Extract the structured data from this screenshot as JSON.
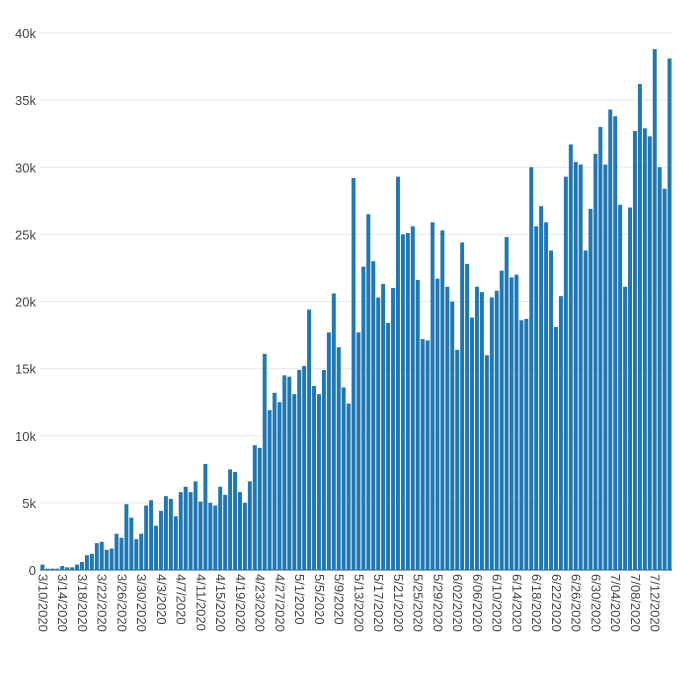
{
  "chart_data": {
    "type": "bar",
    "title": "",
    "xlabel": "",
    "ylabel": "",
    "ylim": [
      0,
      40000
    ],
    "grid": true,
    "bar_color": "#1f77b4",
    "y_ticks": [
      {
        "value": 0,
        "label": "0"
      },
      {
        "value": 5000,
        "label": "5k"
      },
      {
        "value": 10000,
        "label": "10k"
      },
      {
        "value": 15000,
        "label": "15k"
      },
      {
        "value": 20000,
        "label": "20k"
      },
      {
        "value": 25000,
        "label": "25k"
      },
      {
        "value": 30000,
        "label": "30k"
      },
      {
        "value": 35000,
        "label": "35k"
      },
      {
        "value": 40000,
        "label": "40k"
      }
    ],
    "x_tick_labels": [
      "3/10/2020",
      "3/14/2020",
      "3/18/2020",
      "3/22/2020",
      "3/26/2020",
      "3/30/2020",
      "4/3/2020",
      "4/7/2020",
      "4/11/2020",
      "4/15/2020",
      "4/19/2020",
      "4/23/2020",
      "4/27/2020",
      "5/1/2020",
      "5/5/2020",
      "5/9/2020",
      "5/13/2020",
      "5/17/2020",
      "5/21/2020",
      "5/25/2020",
      "5/29/2020",
      "6/02/2020",
      "6/06/2020",
      "6/10/2020",
      "6/14/2020",
      "6/18/2020",
      "6/22/2020",
      "6/26/2020",
      "6/30/2020",
      "7/04/2020",
      "7/08/2020",
      "7/12/2020"
    ],
    "x_tick_every": 4,
    "values": [
      400,
      100,
      100,
      100,
      300,
      200,
      200,
      400,
      600,
      1100,
      1200,
      2000,
      2100,
      1500,
      1600,
      2700,
      2400,
      4900,
      3900,
      2300,
      2700,
      4800,
      5200,
      3300,
      4400,
      5500,
      5300,
      4000,
      5800,
      6200,
      5800,
      6600,
      5100,
      7900,
      5000,
      4800,
      6200,
      5600,
      7500,
      7300,
      5800,
      5000,
      6600,
      9300,
      9100,
      16100,
      11900,
      13200,
      12500,
      14500,
      14400,
      13100,
      14900,
      15200,
      19400,
      13700,
      13100,
      14900,
      17700,
      20600,
      16600,
      13600,
      12400,
      29200,
      17700,
      22600,
      26500,
      23000,
      20300,
      21300,
      18400,
      21000,
      29300,
      25000,
      25100,
      25600,
      21600,
      17200,
      17100,
      25900,
      21700,
      25300,
      21100,
      20000,
      16400,
      24400,
      22800,
      18800,
      21100,
      20700,
      16000,
      20300,
      20800,
      22300,
      24800,
      21800,
      22000,
      18600,
      18700,
      30000,
      25600,
      27100,
      25900,
      23800,
      18100,
      20400,
      29300,
      31700,
      30400,
      30200,
      23800,
      26900,
      31000,
      33000,
      30200,
      34300,
      33800,
      27200,
      21100,
      27000,
      32700,
      36200,
      32900,
      32300,
      38800,
      30000,
      28400,
      38100
    ]
  }
}
